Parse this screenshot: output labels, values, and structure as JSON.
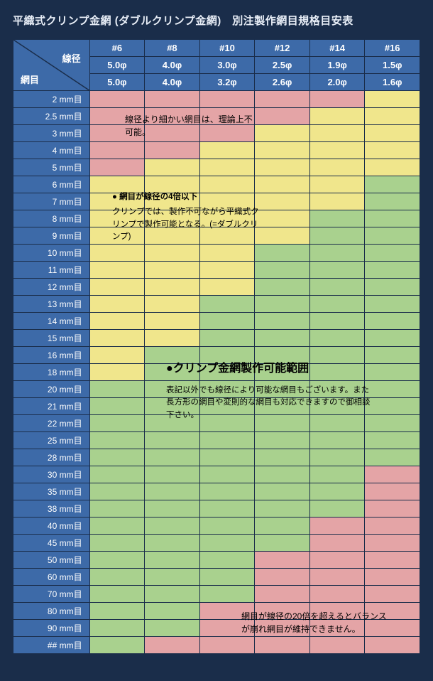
{
  "title": "平織式クリンプ金網 (ダブルクリンプ金網)　別注製作網目規格目安表",
  "corner": {
    "top": "線径",
    "bottom": "網目"
  },
  "col_gauges": [
    "#6",
    "#8",
    "#10",
    "#12",
    "#14",
    "#16"
  ],
  "col_phi1": [
    "5.0φ",
    "4.0φ",
    "3.0φ",
    "2.5φ",
    "1.9φ",
    "1.5φ"
  ],
  "col_phi2": [
    "5.0φ",
    "4.0φ",
    "3.2φ",
    "2.6φ",
    "2.0φ",
    "1.6φ"
  ],
  "rows": [
    {
      "label": "2 mm目",
      "cells": [
        "r",
        "r",
        "r",
        "r",
        "r",
        "y"
      ]
    },
    {
      "label": "2.5 mm目",
      "cells": [
        "r",
        "r",
        "r",
        "r",
        "y",
        "y"
      ]
    },
    {
      "label": "3 mm目",
      "cells": [
        "r",
        "r",
        "r",
        "y",
        "y",
        "y"
      ]
    },
    {
      "label": "4 mm目",
      "cells": [
        "r",
        "r",
        "y",
        "y",
        "y",
        "y"
      ]
    },
    {
      "label": "5 mm目",
      "cells": [
        "r",
        "y",
        "y",
        "y",
        "y",
        "y"
      ]
    },
    {
      "label": "6 mm目",
      "cells": [
        "y",
        "y",
        "y",
        "y",
        "y",
        "g"
      ]
    },
    {
      "label": "7 mm目",
      "cells": [
        "y",
        "y",
        "y",
        "y",
        "y",
        "g"
      ]
    },
    {
      "label": "8 mm目",
      "cells": [
        "y",
        "y",
        "y",
        "y",
        "g",
        "g"
      ]
    },
    {
      "label": "9 mm目",
      "cells": [
        "y",
        "y",
        "y",
        "y",
        "g",
        "g"
      ]
    },
    {
      "label": "10 mm目",
      "cells": [
        "y",
        "y",
        "y",
        "g",
        "g",
        "g"
      ]
    },
    {
      "label": "11 mm目",
      "cells": [
        "y",
        "y",
        "y",
        "g",
        "g",
        "g"
      ]
    },
    {
      "label": "12 mm目",
      "cells": [
        "y",
        "y",
        "y",
        "g",
        "g",
        "g"
      ]
    },
    {
      "label": "13 mm目",
      "cells": [
        "y",
        "y",
        "g",
        "g",
        "g",
        "g"
      ]
    },
    {
      "label": "14 mm目",
      "cells": [
        "y",
        "y",
        "g",
        "g",
        "g",
        "g"
      ]
    },
    {
      "label": "15 mm目",
      "cells": [
        "y",
        "y",
        "g",
        "g",
        "g",
        "g"
      ]
    },
    {
      "label": "16 mm目",
      "cells": [
        "y",
        "g",
        "g",
        "g",
        "g",
        "g"
      ]
    },
    {
      "label": "18 mm目",
      "cells": [
        "y",
        "g",
        "g",
        "g",
        "g",
        "g"
      ]
    },
    {
      "label": "20 mm目",
      "cells": [
        "g",
        "g",
        "g",
        "g",
        "g",
        "g"
      ]
    },
    {
      "label": "21 mm目",
      "cells": [
        "g",
        "g",
        "g",
        "g",
        "g",
        "g"
      ]
    },
    {
      "label": "22 mm目",
      "cells": [
        "g",
        "g",
        "g",
        "g",
        "g",
        "g"
      ]
    },
    {
      "label": "25 mm目",
      "cells": [
        "g",
        "g",
        "g",
        "g",
        "g",
        "g"
      ]
    },
    {
      "label": "28 mm目",
      "cells": [
        "g",
        "g",
        "g",
        "g",
        "g",
        "g"
      ]
    },
    {
      "label": "30 mm目",
      "cells": [
        "g",
        "g",
        "g",
        "g",
        "g",
        "r"
      ]
    },
    {
      "label": "35 mm目",
      "cells": [
        "g",
        "g",
        "g",
        "g",
        "g",
        "r"
      ]
    },
    {
      "label": "38 mm目",
      "cells": [
        "g",
        "g",
        "g",
        "g",
        "g",
        "r"
      ]
    },
    {
      "label": "40 mm目",
      "cells": [
        "g",
        "g",
        "g",
        "g",
        "r",
        "r"
      ]
    },
    {
      "label": "45 mm目",
      "cells": [
        "g",
        "g",
        "g",
        "g",
        "r",
        "r"
      ]
    },
    {
      "label": "50 mm目",
      "cells": [
        "g",
        "g",
        "g",
        "r",
        "r",
        "r"
      ]
    },
    {
      "label": "60 mm目",
      "cells": [
        "g",
        "g",
        "g",
        "r",
        "r",
        "r"
      ]
    },
    {
      "label": "70 mm目",
      "cells": [
        "g",
        "g",
        "g",
        "r",
        "r",
        "r"
      ]
    },
    {
      "label": "80 mm目",
      "cells": [
        "g",
        "g",
        "r",
        "r",
        "r",
        "r"
      ]
    },
    {
      "label": "90 mm目",
      "cells": [
        "g",
        "g",
        "r",
        "r",
        "r",
        "r"
      ]
    },
    {
      "label": "## mm目",
      "cells": [
        "g",
        "r",
        "r",
        "r",
        "r",
        "r"
      ]
    }
  ],
  "colors": {
    "r": "#e4a4a6",
    "y": "#f0e68c",
    "g": "#a9d18e",
    "head": "#3d6aa8",
    "bg": "#1a2d4a"
  },
  "notes": {
    "red_top": "線径より細かい網目は、理論上不可能。",
    "yellow_head": "● 網目が線径の4倍以下",
    "yellow_body": "クリンプでは、製作不可ながら平織式クリンプで製作可能となる。(=ダブルクリンプ)",
    "green_head": "●クリンプ金網製作可能範囲",
    "green_body": "表記以外でも線径により可能な網目もございます。また長方形の網目や変則的な網目も対応できますので御相談下さい。",
    "pink_bottom": "網目が線径の20倍を超えるとバランスが崩れ網目が維持できません。"
  }
}
